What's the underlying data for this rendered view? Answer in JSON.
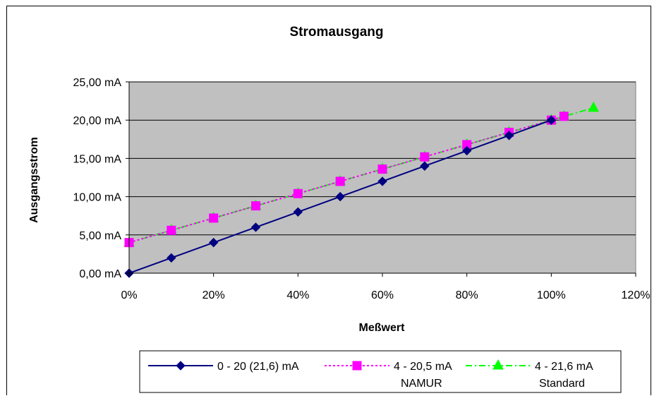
{
  "chart_data": {
    "type": "line",
    "title": "Stromausgang",
    "xlabel": "Meßwert",
    "ylabel": "Ausgangsstrom",
    "xlim": [
      0,
      120
    ],
    "ylim": [
      0,
      25
    ],
    "x_ticks": [
      "0%",
      "20%",
      "40%",
      "60%",
      "80%",
      "100%",
      "120%"
    ],
    "y_ticks": [
      "0,00 mA",
      "5,00 mA",
      "10,00 mA",
      "15,00 mA",
      "20,00 mA",
      "25,00 mA"
    ],
    "grid": "horizontal",
    "plot_background": "#c0c0c0",
    "legend_position": "bottom",
    "series": [
      {
        "name": "0 - 20 (21,6) mA",
        "color": "#000080",
        "marker": "diamond",
        "line_style": "solid",
        "x": [
          0,
          10,
          20,
          30,
          40,
          50,
          60,
          70,
          80,
          90,
          100
        ],
        "y": [
          0,
          2,
          4,
          6,
          8,
          10,
          12,
          14,
          16,
          18,
          20
        ]
      },
      {
        "name": "4 - 20,5 mA NAMUR",
        "color": "#ff00ff",
        "marker": "square",
        "line_style": "dotted",
        "x": [
          0,
          10,
          20,
          30,
          40,
          50,
          60,
          70,
          80,
          90,
          100,
          103
        ],
        "y": [
          4,
          5.6,
          7.2,
          8.8,
          10.4,
          12,
          13.6,
          15.2,
          16.8,
          18.4,
          20,
          20.5
        ]
      },
      {
        "name": "4 - 21,6 mA Standard",
        "color": "#00ff00",
        "marker": "triangle",
        "line_style": "dashdot",
        "x": [
          0,
          10,
          20,
          30,
          40,
          50,
          60,
          70,
          80,
          90,
          100,
          103,
          110
        ],
        "y": [
          4,
          5.6,
          7.2,
          8.8,
          10.4,
          12,
          13.6,
          15.2,
          16.8,
          18.4,
          20,
          20.5,
          21.6
        ]
      }
    ],
    "legend": [
      {
        "line1": "0 - 20 (21,6) mA",
        "line2": ""
      },
      {
        "line1": "4 - 20,5 mA",
        "line2": "NAMUR"
      },
      {
        "line1": "4 - 21,6 mA",
        "line2": "Standard"
      }
    ]
  }
}
